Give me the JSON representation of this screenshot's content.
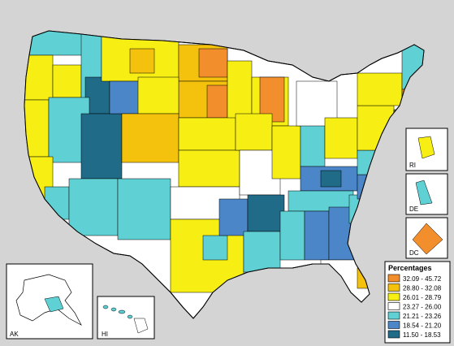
{
  "legend": {
    "title": "Percentages",
    "items": [
      {
        "label": "32.09 - 45.72",
        "color": "#f28e2b"
      },
      {
        "label": "28.80 - 32.08",
        "color": "#f4c20d"
      },
      {
        "label": "26.01 - 28.79",
        "color": "#f7ef14"
      },
      {
        "label": "23.27 - 26.00",
        "color": "#ffffff"
      },
      {
        "label": "21.21 - 23.26",
        "color": "#5fd0d4"
      },
      {
        "label": "18.54 - 21.20",
        "color": "#4a86c8"
      },
      {
        "label": "11.50 - 18.53",
        "color": "#1f6b88"
      }
    ]
  },
  "insets": {
    "ak": "AK",
    "hi": "HI",
    "ri": "RI",
    "de": "DE",
    "dc": "DC"
  },
  "colors": {
    "background": "#d4d4d4",
    "border": "#000000",
    "water": "#d4d4d4"
  }
}
